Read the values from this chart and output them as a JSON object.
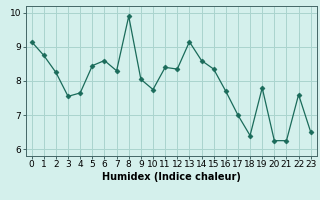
{
  "x": [
    0,
    1,
    2,
    3,
    4,
    5,
    6,
    7,
    8,
    9,
    10,
    11,
    12,
    13,
    14,
    15,
    16,
    17,
    18,
    19,
    20,
    21,
    22,
    23
  ],
  "y": [
    9.15,
    8.75,
    8.25,
    7.55,
    7.65,
    8.45,
    8.6,
    8.3,
    9.9,
    8.05,
    7.75,
    8.4,
    8.35,
    9.15,
    8.6,
    8.35,
    7.7,
    7.0,
    6.4,
    7.8,
    6.25,
    6.25,
    7.6,
    6.5
  ],
  "line_color": "#1a6b5a",
  "marker": "D",
  "marker_size": 2.5,
  "bg_color": "#d4f0ec",
  "grid_color": "#aad4ce",
  "xlabel": "Humidex (Indice chaleur)",
  "xlim": [
    -0.5,
    23.5
  ],
  "ylim": [
    5.8,
    10.2
  ],
  "xticks": [
    0,
    1,
    2,
    3,
    4,
    5,
    6,
    7,
    8,
    9,
    10,
    11,
    12,
    13,
    14,
    15,
    16,
    17,
    18,
    19,
    20,
    21,
    22,
    23
  ],
  "yticks": [
    6,
    7,
    8,
    9,
    10
  ],
  "xlabel_fontsize": 7,
  "tick_fontsize": 6.5,
  "linewidth": 0.9
}
